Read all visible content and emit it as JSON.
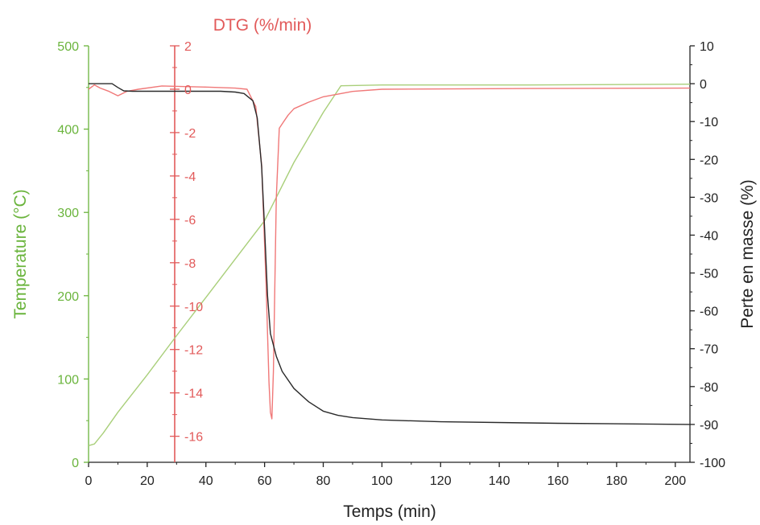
{
  "chart_data": {
    "type": "line",
    "x_axis": {
      "label": "Temps (min)",
      "range": [
        0,
        205
      ],
      "ticks": [
        0,
        20,
        40,
        60,
        80,
        100,
        120,
        140,
        160,
        180,
        200
      ]
    },
    "axes": {
      "temperature": {
        "label": "Temperature (°C)",
        "color": "#6ab43c",
        "range": [
          0,
          500
        ],
        "ticks": [
          0,
          100,
          200,
          300,
          400,
          500
        ]
      },
      "dtg": {
        "label": "DTG (%/min)",
        "color": "#e25a5a",
        "range": [
          -17.2,
          2
        ],
        "ticks": [
          2,
          0,
          -2,
          -4,
          -6,
          -8,
          -10,
          -12,
          -14,
          -16
        ]
      },
      "mass_loss": {
        "label": "Perte en masse (%)",
        "color": "#222222",
        "range": [
          -100,
          10
        ],
        "ticks": [
          10,
          0,
          -10,
          -20,
          -30,
          -40,
          -50,
          -60,
          -70,
          -80,
          -90,
          -100
        ]
      }
    },
    "series": [
      {
        "axis": "temperature",
        "color": "#a9cf7a",
        "points": [
          [
            0,
            20
          ],
          [
            2,
            22
          ],
          [
            5,
            35
          ],
          [
            10,
            60
          ],
          [
            20,
            105
          ],
          [
            30,
            152
          ],
          [
            40,
            198
          ],
          [
            50,
            244
          ],
          [
            60,
            290
          ],
          [
            70,
            360
          ],
          [
            75,
            390
          ],
          [
            80,
            420
          ],
          [
            86,
            452
          ],
          [
            100,
            453
          ],
          [
            150,
            453
          ],
          [
            205,
            454
          ]
        ]
      },
      {
        "axis": "dtg",
        "color": "#f07878",
        "points": [
          [
            0,
            0
          ],
          [
            2,
            0.2
          ],
          [
            4,
            0.05
          ],
          [
            7,
            -0.1
          ],
          [
            10,
            -0.3
          ],
          [
            13,
            -0.1
          ],
          [
            17,
            0
          ],
          [
            25,
            0.15
          ],
          [
            40,
            0.1
          ],
          [
            50,
            0.05
          ],
          [
            54,
            0
          ],
          [
            57,
            -0.8
          ],
          [
            59,
            -3.5
          ],
          [
            60.5,
            -9
          ],
          [
            61.5,
            -13.5
          ],
          [
            62,
            -14.9
          ],
          [
            62.5,
            -15.2
          ],
          [
            63,
            -13
          ],
          [
            64,
            -5
          ],
          [
            65,
            -1.8
          ],
          [
            66.5,
            -1.5
          ],
          [
            68,
            -1.2
          ],
          [
            70,
            -0.9
          ],
          [
            75,
            -0.6
          ],
          [
            80,
            -0.35
          ],
          [
            90,
            -0.1
          ],
          [
            100,
            0
          ],
          [
            150,
            0.03
          ],
          [
            205,
            0.05
          ]
        ]
      },
      {
        "axis": "mass_loss",
        "color": "#2a2a2a",
        "points": [
          [
            0,
            0
          ],
          [
            5,
            0
          ],
          [
            8,
            0
          ],
          [
            10,
            -1
          ],
          [
            12,
            -1.9
          ],
          [
            15,
            -2
          ],
          [
            30,
            -2
          ],
          [
            45,
            -2
          ],
          [
            50,
            -2.2
          ],
          [
            53,
            -2.6
          ],
          [
            56,
            -4.5
          ],
          [
            57.5,
            -9
          ],
          [
            59,
            -22
          ],
          [
            60,
            -38
          ],
          [
            61,
            -56
          ],
          [
            62,
            -66
          ],
          [
            64,
            -72
          ],
          [
            66,
            -76
          ],
          [
            70,
            -80.5
          ],
          [
            75,
            -84
          ],
          [
            80,
            -86.5
          ],
          [
            85,
            -87.6
          ],
          [
            90,
            -88.2
          ],
          [
            100,
            -88.8
          ],
          [
            120,
            -89.3
          ],
          [
            160,
            -89.7
          ],
          [
            205,
            -90
          ]
        ]
      }
    ]
  }
}
